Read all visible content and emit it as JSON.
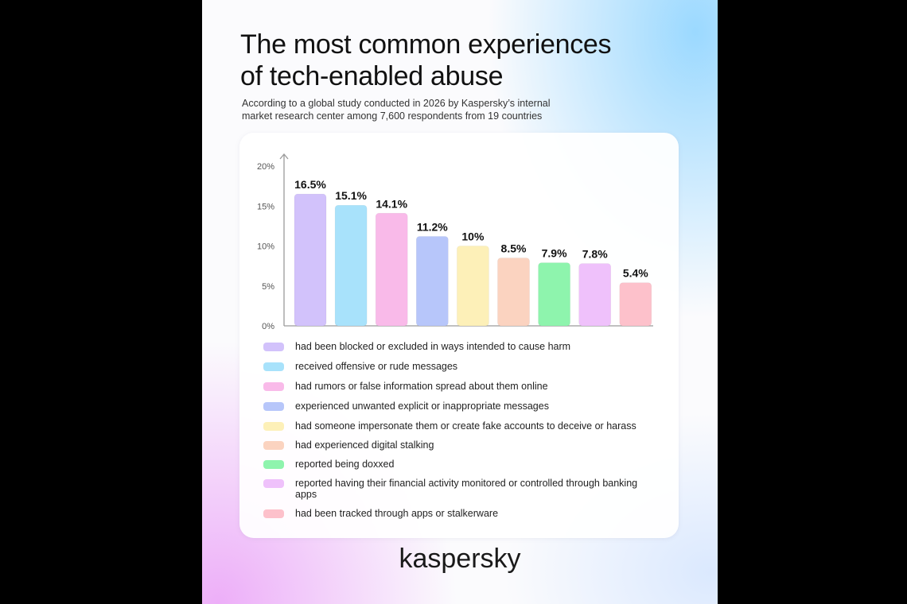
{
  "title_line1": "The most common experiences",
  "title_line2": "of tech-enabled abuse",
  "subtitle_line1": "According to a global study conducted in 2026 by Kaspersky’s internal",
  "subtitle_line2": "market research center among 7,600 respondents from 19 countries",
  "brand": "kaspersky",
  "chart_data": {
    "type": "bar",
    "title": "The most common experiences of tech-enabled abuse",
    "ylim": [
      0,
      20
    ],
    "yticks": [
      0,
      5,
      10,
      15,
      20
    ],
    "ytick_labels": [
      "0%",
      "5%",
      "10%",
      "15%",
      "20%"
    ],
    "grid": false,
    "legend_placement": "bottom",
    "categories": [
      "had been blocked or excluded in ways intended to cause harm",
      "received offensive or rude messages",
      "had rumors or false information spread about them online",
      "experienced unwanted explicit or inappropriate messages",
      "had someone impersonate them or create fake accounts to deceive or harass",
      "had experienced digital stalking",
      "reported being doxxed",
      "reported having their financial activity monitored or controlled through banking apps",
      "had been tracked through apps or stalkerware"
    ],
    "values": [
      16.5,
      15.1,
      14.1,
      11.2,
      10,
      8.5,
      7.9,
      7.8,
      5.4
    ],
    "value_labels": [
      "16.5%",
      "15.1%",
      "14.1%",
      "11.2%",
      "10%",
      "8.5%",
      "7.9%",
      "7.8%",
      "5.4%"
    ],
    "colors": [
      "#d2c2fb",
      "#a8e2fb",
      "#f9bae9",
      "#b7c6fa",
      "#fdf0b8",
      "#fbd3c0",
      "#8ef4ad",
      "#efc1fb",
      "#fdc1cb"
    ]
  }
}
